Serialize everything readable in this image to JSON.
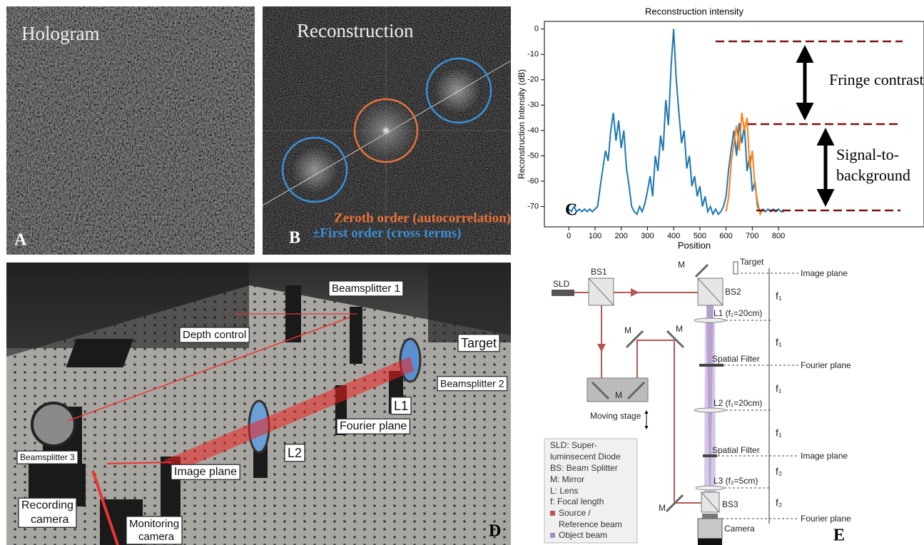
{
  "panel_a": {
    "title": "Hologram",
    "letter": "A"
  },
  "panel_b": {
    "title": "Reconstruction",
    "letter": "B",
    "legend": [
      "Zeroth order (autocorrelation)",
      "±First order (cross terms)"
    ]
  },
  "chart_data": {
    "type": "line",
    "title": "Reconstruction intensity",
    "x_label": "Position",
    "y_label": "Reconstruction Intensity (dB)",
    "xlim": [
      -93,
      1355
    ],
    "ylim": [
      -78,
      3
    ],
    "xticks": [
      0,
      100,
      200,
      300,
      400,
      500,
      600,
      700,
      800
    ],
    "yticks": [
      0,
      -10,
      -20,
      -30,
      -40,
      -50,
      -60,
      -70
    ],
    "series": [
      {
        "color": "#1f77b4",
        "x": [
          0,
          10,
          20,
          30,
          40,
          50,
          60,
          70,
          80,
          90,
          100,
          110,
          120,
          130,
          140,
          150,
          160,
          170,
          180,
          190,
          200,
          210,
          220,
          230,
          240,
          250,
          260,
          270,
          280,
          290,
          300,
          310,
          320,
          330,
          340,
          350,
          360,
          370,
          380,
          390,
          400,
          410,
          420,
          430,
          440,
          450,
          460,
          470,
          480,
          490,
          500,
          510,
          520,
          530,
          540,
          550,
          560,
          570,
          580,
          590,
          600,
          610,
          620,
          630,
          640,
          650,
          660,
          670,
          680,
          690,
          700,
          710,
          720,
          730,
          740,
          750,
          760,
          770,
          780,
          790,
          800,
          810,
          820
        ],
        "values": [
          -71,
          -72,
          -70,
          -72,
          -71,
          -72,
          -71,
          -72,
          -71,
          -72,
          -71,
          -70,
          -62,
          -55,
          -48,
          -52,
          -40,
          -33,
          -44,
          -36,
          -47,
          -40,
          -55,
          -62,
          -70,
          -72,
          -73,
          -70,
          -72,
          -69,
          -64,
          -58,
          -66,
          -50,
          -56,
          -42,
          -48,
          -28,
          -38,
          -15,
          0,
          -20,
          -33,
          -45,
          -40,
          -55,
          -50,
          -62,
          -58,
          -66,
          -62,
          -70,
          -66,
          -72,
          -70,
          -73,
          -71,
          -73,
          -72,
          -70,
          -66,
          -55,
          -47,
          -40,
          -50,
          -37,
          -45,
          -38,
          -56,
          -50,
          -64,
          -60,
          -70,
          -72,
          -71,
          -72,
          -71,
          -72,
          -71,
          -72,
          -71,
          -72,
          -72
        ]
      },
      {
        "color": "#ff7f0e",
        "x": [
          600,
          610,
          620,
          630,
          640,
          650,
          660,
          670,
          680,
          690,
          700,
          710,
          720,
          730,
          740
        ],
        "values": [
          -72,
          -66,
          -52,
          -45,
          -38,
          -48,
          -33,
          -40,
          -35,
          -55,
          -48,
          -62,
          -68,
          -73,
          -71
        ]
      }
    ],
    "annotations": [
      "Fringe contrast",
      "Signal-to-",
      "background"
    ],
    "panel_letter": "C"
  },
  "panel_d": {
    "letter": "D",
    "labels": [
      "Beamsplitter 1",
      "Depth control",
      "Target",
      "Beamsplitter 2",
      "L1",
      "Fourier plane",
      "L2",
      "Image plane",
      "Beamsplitter 3",
      [
        "Recording",
        "camera"
      ],
      [
        "Monitoring",
        "camera"
      ]
    ]
  },
  "panel_e": {
    "letter": "E",
    "sld": "SLD",
    "bs1": "BS1",
    "bs2": "BS2",
    "bs3": "BS3",
    "target": "Target",
    "mirror": "M",
    "moving_stage": "Moving stage",
    "camera": "Camera",
    "planes": [
      "Image plane",
      "Fourier plane",
      "Image plane",
      "Fourier plane"
    ],
    "focal": [
      "f₁",
      "f₁",
      "f₁",
      "f₁",
      "f₂",
      "f₂"
    ],
    "lenses": [
      "L1 (f₁=20cm)",
      "L2 (f₁=20cm)",
      "L3 (f₂=5cm)"
    ],
    "spatial_filter": "Spatial Filter",
    "legend": [
      "SLD: Super-",
      "luminsecent Diode",
      "BS: Beam Splitter",
      "M: Mirror",
      "L: Lens",
      "f: Focal length",
      "Source /",
      "Reference beam",
      "Object beam"
    ]
  }
}
